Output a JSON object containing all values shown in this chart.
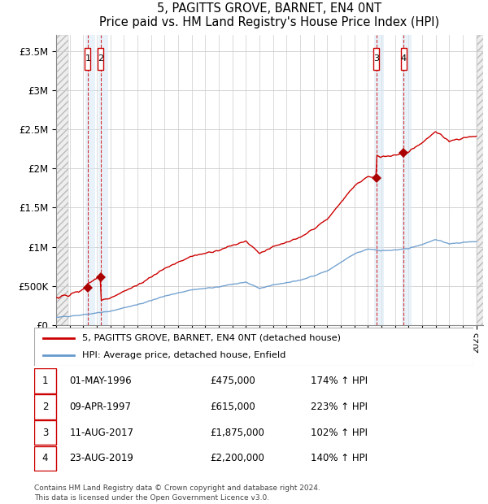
{
  "title": "5, PAGITTS GROVE, BARNET, EN4 0NT",
  "subtitle": "Price paid vs. HM Land Registry's House Price Index (HPI)",
  "ylim": [
    0,
    3700000
  ],
  "yticks": [
    0,
    500000,
    1000000,
    1500000,
    2000000,
    2500000,
    3000000,
    3500000
  ],
  "ytick_labels": [
    "£0",
    "£500K",
    "£1M",
    "£1.5M",
    "£2M",
    "£2.5M",
    "£3M",
    "£3.5M"
  ],
  "x_start_year": 1994,
  "x_end_year": 2025,
  "transactions": [
    {
      "label": "1",
      "date": 1996.33,
      "price": 475000
    },
    {
      "label": "2",
      "date": 1997.27,
      "price": 615000
    },
    {
      "label": "3",
      "date": 2017.61,
      "price": 1875000
    },
    {
      "label": "4",
      "date": 2019.64,
      "price": 2200000
    }
  ],
  "legend_property": "5, PAGITTS GROVE, BARNET, EN4 0NT (detached house)",
  "legend_hpi": "HPI: Average price, detached house, Enfield",
  "table_rows": [
    [
      "1",
      "01-MAY-1996",
      "£475,000",
      "174% ↑ HPI"
    ],
    [
      "2",
      "09-APR-1997",
      "£615,000",
      "223% ↑ HPI"
    ],
    [
      "3",
      "11-AUG-2017",
      "£1,875,000",
      "102% ↑ HPI"
    ],
    [
      "4",
      "23-AUG-2019",
      "£2,200,000",
      "140% ↑ HPI"
    ]
  ],
  "footer": "Contains HM Land Registry data © Crown copyright and database right 2024.\nThis data is licensed under the Open Government Licence v3.0.",
  "property_line_color": "#cc0000",
  "hpi_line_color": "#6699cc",
  "transaction_marker_color": "#aa0000",
  "box_highlight_color": "#d8e8f5",
  "grid_color": "#cccccc",
  "background_color": "#ffffff"
}
